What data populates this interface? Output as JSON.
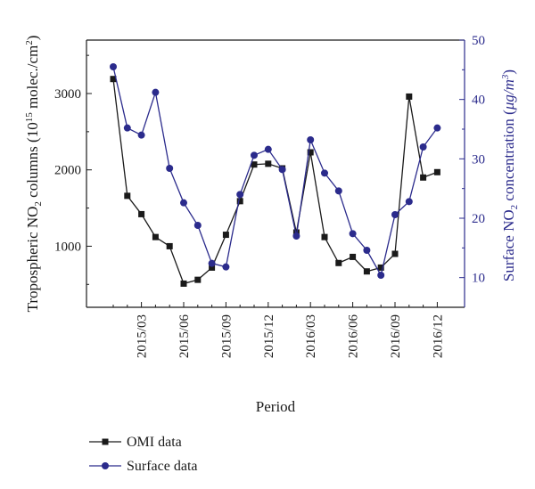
{
  "chart_data": {
    "type": "line",
    "categories": [
      "2015/01",
      "2015/02",
      "2015/03",
      "2015/04",
      "2015/05",
      "2015/06",
      "2015/07",
      "2015/08",
      "2015/09",
      "2015/10",
      "2015/11",
      "2015/12",
      "2016/01",
      "2016/02",
      "2016/03",
      "2016/04",
      "2016/05",
      "2016/06",
      "2016/07",
      "2016/08",
      "2016/09",
      "2016/10",
      "2016/11",
      "2016/12"
    ],
    "tick_labels": [
      "2015/03",
      "2015/06",
      "2015/09",
      "2015/12",
      "2016/03",
      "2016/06",
      "2016/09",
      "2016/12"
    ],
    "tick_indices": [
      2,
      5,
      8,
      11,
      14,
      17,
      20,
      23
    ],
    "xlabel": "Period",
    "ylabel_left": {
      "pre": "Tropospheric NO",
      "sub": "2",
      "mid": " columns (10",
      "sup": "15",
      "post": " molec./cm",
      "sup2": "2",
      "end": ")"
    },
    "ylabel_right": {
      "pre": "Surface NO",
      "sub": "2",
      "mid": " concentration (",
      "mu": "μ",
      "post": "g/m",
      "sup": "3",
      "end": ")"
    },
    "yleft_ticks": [
      "1000",
      "2000",
      "3000"
    ],
    "yright_ticks": [
      "10",
      "20",
      "30",
      "40",
      "50"
    ],
    "ylim_left": [
      200,
      3700
    ],
    "ylim_right": [
      5,
      50
    ],
    "series": [
      {
        "name": "OMI data",
        "axis": "left",
        "color": "#1a1a1a",
        "marker": "square",
        "values": [
          3190,
          1660,
          1420,
          1120,
          1000,
          510,
          560,
          720,
          1150,
          1590,
          2070,
          2080,
          2020,
          1180,
          2230,
          1120,
          780,
          860,
          670,
          720,
          900,
          2960,
          1900,
          1970
        ]
      },
      {
        "name": "Surface data",
        "axis": "right",
        "color": "#2b2b8c",
        "marker": "circle",
        "values": [
          45.5,
          35.2,
          34.0,
          41.2,
          28.4,
          22.6,
          18.8,
          12.4,
          11.8,
          24.0,
          30.6,
          31.6,
          28.2,
          17.0,
          33.2,
          27.6,
          24.6,
          17.4,
          14.6,
          10.4,
          20.6,
          22.8,
          32.0,
          35.2
        ]
      }
    ],
    "legend": "bottom-left",
    "colors": {
      "axis_left": "#1a1a1a",
      "axis_right": "#2b2b8c",
      "grid": false
    }
  }
}
